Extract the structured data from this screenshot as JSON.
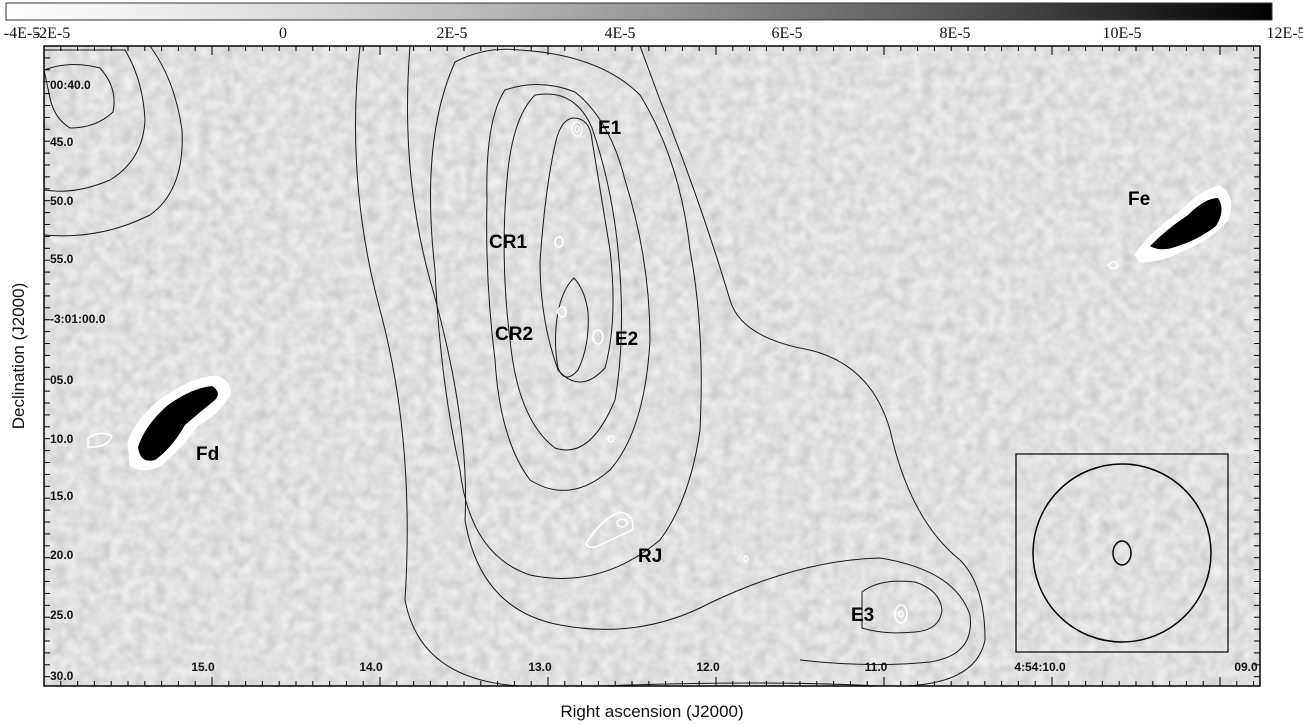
{
  "colorbar": {
    "tick_labels": [
      "-4E-5",
      "-2E-5",
      "0",
      "2E-5",
      "4E-5",
      "6E-5",
      "8E-5",
      "10E-5",
      "12E-5"
    ],
    "min": -4e-05,
    "max": 0.00012,
    "scale": "linear, greyscale (white to black)"
  },
  "axes": {
    "xlabel": "Right ascension (J2000)",
    "ylabel": "Declination (J2000)",
    "x_ticks": [
      "15.0",
      "14.0",
      "13.0",
      "12.0",
      "11.0",
      "4:54:10.0",
      "09.0"
    ],
    "y_ticks": [
      "00:40.0",
      "45.0",
      "50.0",
      "55.0",
      "-3:01:00.0",
      "05.0",
      "10.0",
      "15.0",
      "20.0",
      "25.0",
      "30.0"
    ]
  },
  "sources": {
    "E1": "E1",
    "CR1": "CR1",
    "CR2": "CR2",
    "E2": "E2",
    "Fd": "Fd",
    "Fe": "Fe",
    "RJ": "RJ",
    "E3": "E3"
  },
  "beam_inset": {
    "present": true,
    "shape": "circle with small ellipse"
  },
  "colors": {
    "background_grey": "#c6c6c6",
    "contour_dark": "#1a1a1a",
    "contour_white": "#ffffff"
  }
}
